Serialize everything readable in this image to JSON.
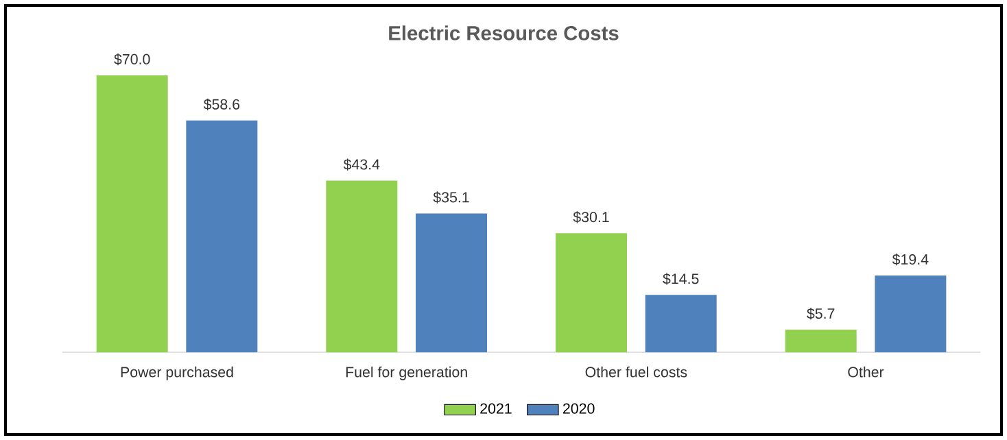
{
  "chart_data": {
    "type": "bar",
    "title": "Electric Resource Costs",
    "categories": [
      "Power purchased",
      "Fuel for generation",
      "Other fuel costs",
      "Other"
    ],
    "series": [
      {
        "name": "2021",
        "color": "#92d050",
        "values": [
          70.0,
          43.4,
          30.1,
          5.7
        ],
        "value_labels": [
          "$70.0",
          "$43.4",
          "$30.1",
          "$5.7"
        ]
      },
      {
        "name": "2020",
        "color": "#4f81bd",
        "values": [
          58.6,
          35.1,
          14.5,
          19.4
        ],
        "value_labels": [
          "$58.6",
          "$35.1",
          "$14.5",
          "$19.4"
        ]
      }
    ],
    "legend": "bottom"
  }
}
